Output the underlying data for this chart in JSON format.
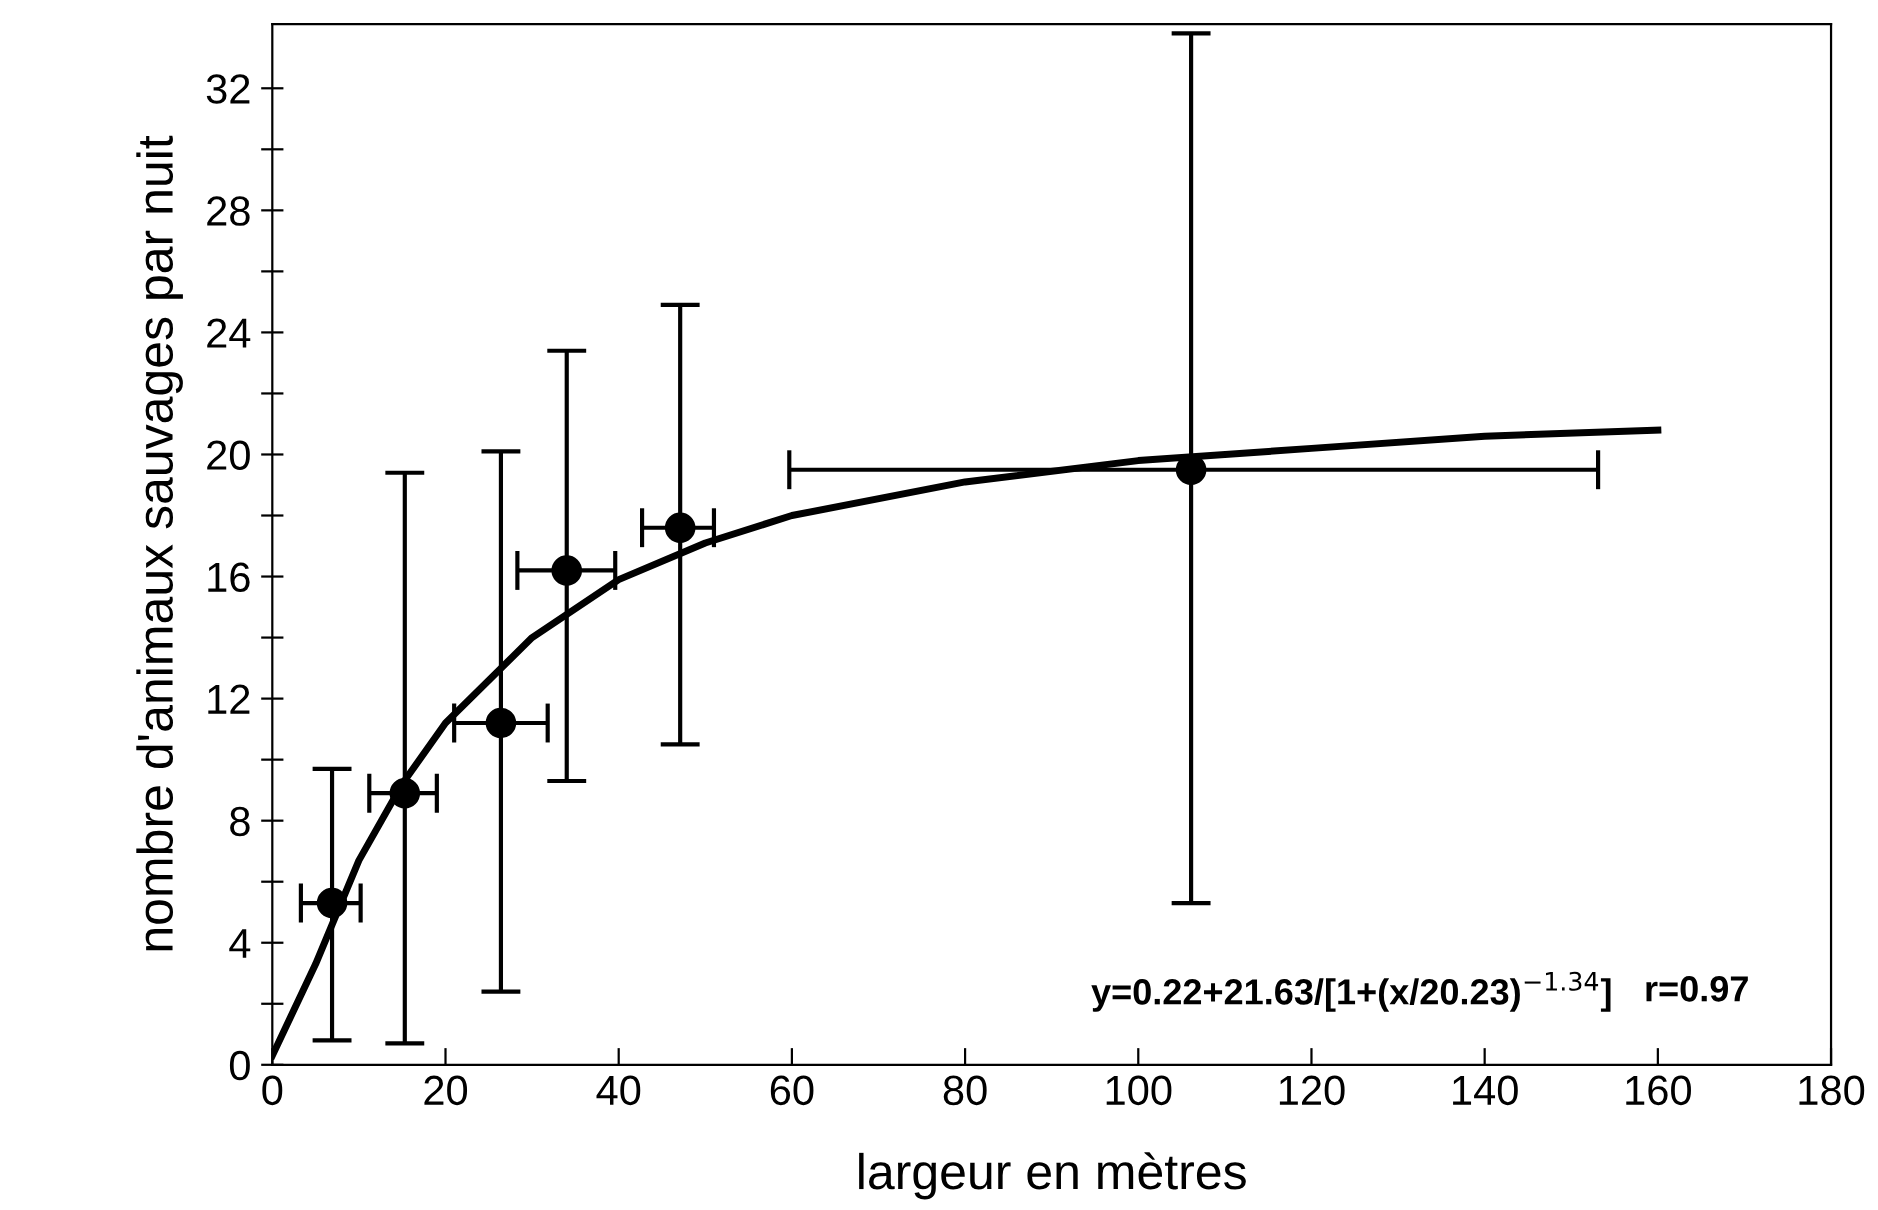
{
  "chart_data": {
    "type": "scatter",
    "xlabel": "largeur en mètres",
    "ylabel": "nombre d'animaux sauvages par nuit",
    "xlim": [
      0,
      180
    ],
    "ylim": [
      0,
      34.1
    ],
    "xticks": [
      0,
      20,
      40,
      60,
      80,
      100,
      120,
      140,
      160,
      180
    ],
    "yticks": [
      0,
      {
        "value": 2,
        "label": null
      },
      4,
      {
        "value": 6,
        "label": null
      },
      8,
      {
        "value": 10,
        "label": null
      },
      12,
      {
        "value": 14,
        "label": null
      },
      16,
      {
        "value": 18,
        "label": null
      },
      20,
      {
        "value": 22,
        "label": null
      },
      24,
      {
        "value": 26,
        "label": null
      },
      28,
      {
        "value": 30,
        "label": null
      },
      32
    ],
    "grid": false,
    "legend": false,
    "marker": "circle",
    "series": [
      {
        "color": "#000000",
        "x": [
          6.9,
          15.3,
          26.4,
          34.0,
          47.1,
          106.1
        ],
        "values": [
          5.3,
          8.9,
          11.2,
          16.2,
          17.6,
          19.5
        ],
        "errors": [
          [
            0.8,
            9.7
          ],
          [
            0.7,
            19.4
          ],
          [
            2.4,
            20.1
          ],
          [
            9.3,
            23.4
          ],
          [
            10.5,
            24.9
          ],
          [
            5.3,
            33.8
          ]
        ],
        "xerrors": [
          [
            3.3,
            10.2
          ],
          [
            11.2,
            19.0
          ],
          [
            21.0,
            31.8
          ],
          [
            28.3,
            39.6
          ],
          [
            42.7,
            51.0
          ],
          [
            59.7,
            153.1
          ]
        ]
      },
      {
        "type": "line",
        "color": "#000000",
        "marker": "none",
        "line_style": "solid",
        "x": [
          0,
          5,
          10,
          15,
          20,
          30,
          40,
          50,
          60,
          80,
          100,
          120,
          140,
          160
        ],
        "values": [
          0.3,
          3.3,
          6.7,
          9.2,
          11.2,
          14.0,
          15.9,
          17.1,
          18.0,
          19.1,
          19.8,
          20.2,
          20.6,
          20.8
        ]
      }
    ],
    "annotations": [
      "y=0.22+21.63/[1+(x/20.23)$^{−1.34}$]",
      "r=0.97"
    ]
  }
}
